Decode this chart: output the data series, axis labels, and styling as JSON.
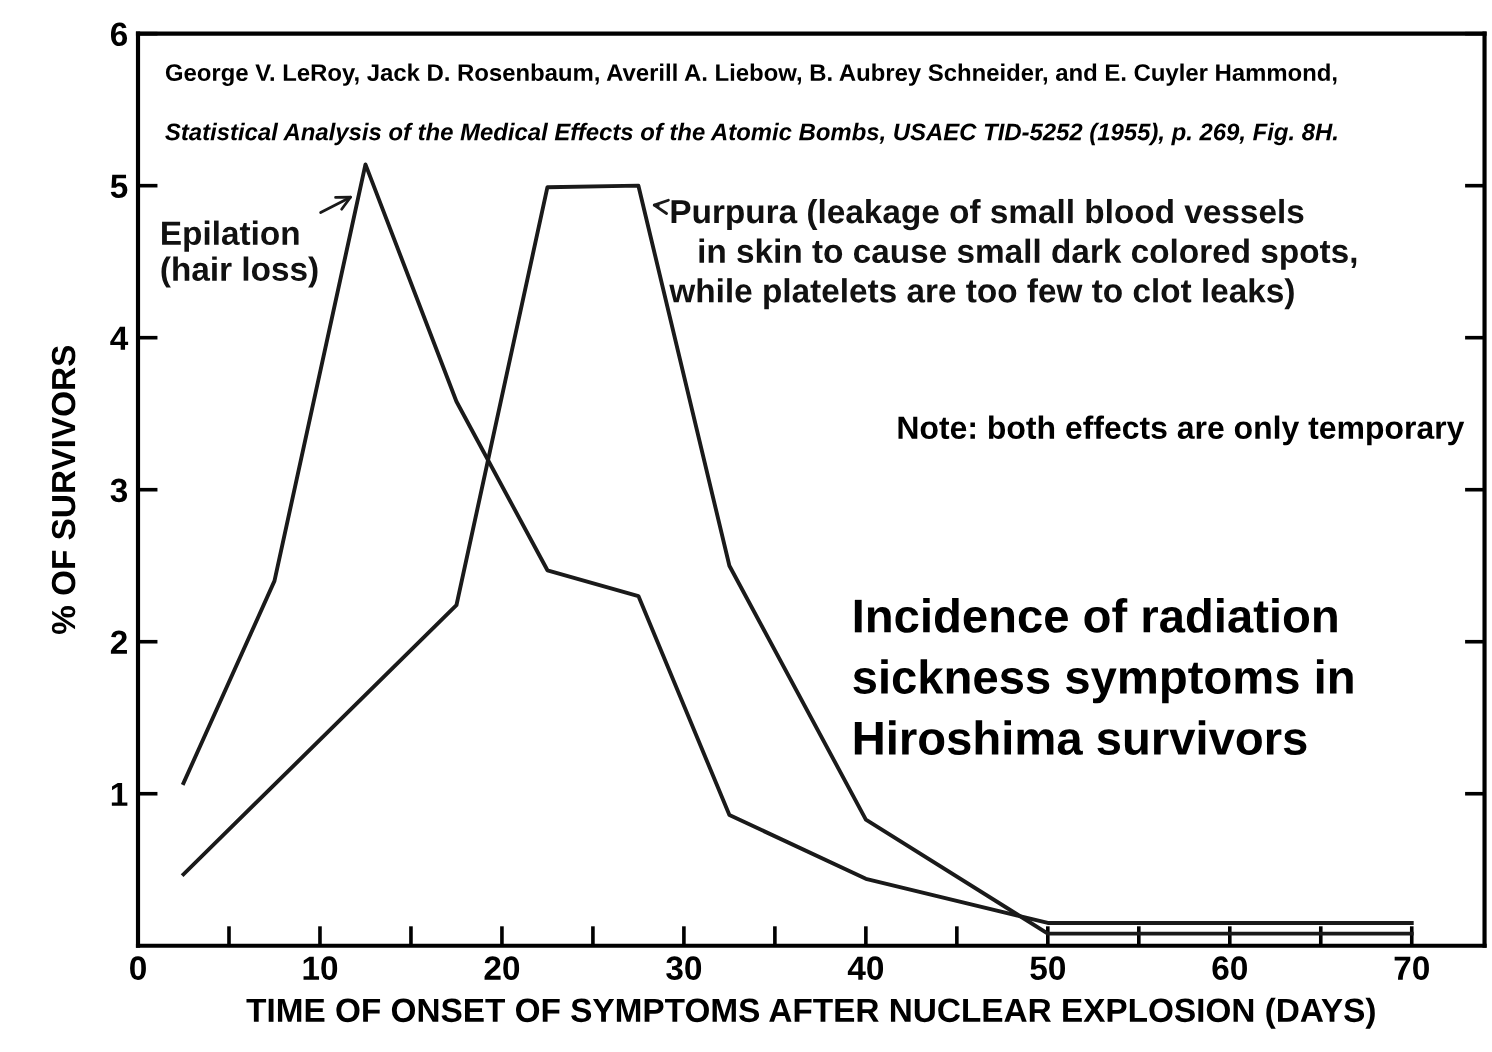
{
  "chart_data": {
    "type": "line",
    "title": "Incidence of radiation sickness symptoms in Hiroshima survivors",
    "xlabel": "TIME OF ONSET OF SYMPTOMS AFTER NUCLEAR EXPLOSION (DAYS)",
    "ylabel": "% OF SURVIVORS",
    "series": [
      {
        "name": "Epilation (hair loss)",
        "color": "#1a1a1a",
        "x": [
          2.5,
          7.5,
          12.5,
          17.5,
          22.5,
          27.5,
          32.5,
          40,
          50,
          70
        ],
        "values": [
          1.07,
          2.4,
          5.14,
          3.58,
          2.47,
          2.3,
          0.86,
          0.44,
          0.15,
          0.15
        ]
      },
      {
        "name": "Purpura (leakage of small blood vessels in skin to cause small dark colored spots, while platelets are too few to clot leaks)",
        "color": "#1a1a1a",
        "x": [
          2.5,
          17.5,
          22.5,
          27.5,
          32.5,
          40,
          50,
          70
        ],
        "values": [
          0.47,
          2.24,
          4.99,
          5.0,
          2.5,
          0.83,
          0.08,
          0.08
        ]
      }
    ],
    "annotations": [
      "George V. LeRoy, Jack D. Rosenbaum, Averill A. Liebow, B. Aubrey Schneider, and E. Cuyler Hammond,",
      "Statistical Analysis of the Medical Effects of the Atomic Bombs, USAEC TID-5252 (1955), p. 269, Fig. 8H.",
      "Note: both effects are only temporary"
    ],
    "xlim": [
      0,
      74
    ],
    "ylim": [
      0,
      6
    ],
    "xticks": [
      0,
      {
        "value": 5,
        "label": null
      },
      10,
      {
        "value": 15,
        "label": null
      },
      20,
      {
        "value": 25,
        "label": null
      },
      30,
      {
        "value": 35,
        "label": null
      },
      40,
      {
        "value": 45,
        "label": null
      },
      50,
      {
        "value": 55,
        "label": null
      },
      60,
      {
        "value": 65,
        "label": null
      },
      70
    ],
    "yticks": [
      1,
      2,
      3,
      4,
      5,
      6
    ],
    "grid": false,
    "legend": "top",
    "marker": "none",
    "line_style": "solid"
  }
}
